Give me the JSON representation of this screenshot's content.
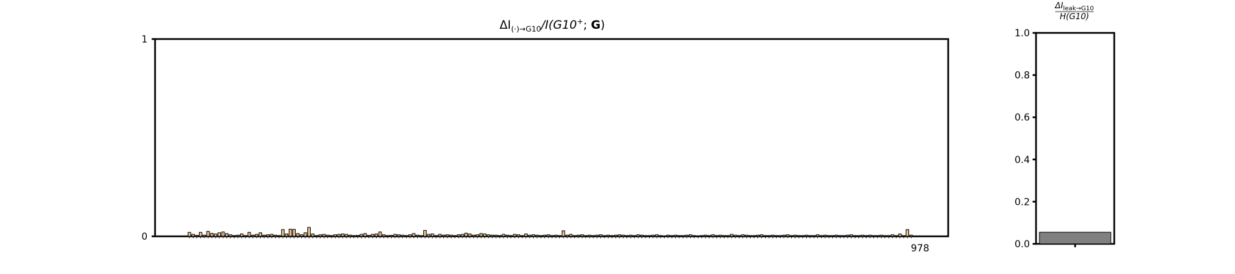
{
  "chart_data": [
    {
      "type": "bar",
      "title": "ΔI(·)→G10/I(G10+; G)",
      "title_parts": {
        "delta": "ΔI",
        "subscript": "(·)→G10",
        "mid": "/I(G10",
        "superscript": "+",
        "tail": "; ",
        "bold": "G",
        "close": ")"
      },
      "xlabel": "",
      "ylabel": "",
      "ylim": [
        0,
        1
      ],
      "yticks": [
        "0",
        "1"
      ],
      "bar_fill": "#f5c78f",
      "bar_edge": "#000000",
      "values": [
        0.02,
        0.01,
        0.005,
        0.02,
        0.006,
        0.025,
        0.015,
        0.012,
        0.018,
        0.022,
        0.014,
        0.008,
        0.004,
        0.006,
        0.012,
        0.004,
        0.02,
        0.006,
        0.01,
        0.018,
        0.006,
        0.008,
        0.01,
        0.006,
        0.004,
        0.034,
        0.012,
        0.036,
        0.035,
        0.014,
        0.008,
        0.018,
        0.045,
        0.012,
        0.004,
        0.008,
        0.01,
        0.006,
        0.004,
        0.008,
        0.01,
        0.012,
        0.01,
        0.006,
        0.004,
        0.005,
        0.01,
        0.014,
        0.005,
        0.01,
        0.012,
        0.022,
        0.008,
        0.004,
        0.005,
        0.01,
        0.008,
        0.006,
        0.004,
        0.008,
        0.014,
        0.006,
        0.004,
        0.03,
        0.01,
        0.012,
        0.004,
        0.01,
        0.006,
        0.008,
        0.006,
        0.004,
        0.008,
        0.01,
        0.016,
        0.012,
        0.006,
        0.008,
        0.014,
        0.012,
        0.008,
        0.006,
        0.006,
        0.004,
        0.01,
        0.006,
        0.004,
        0.01,
        0.008,
        0.004,
        0.012,
        0.006,
        0.008,
        0.006,
        0.004,
        0.006,
        0.008,
        0.004,
        0.006,
        0.004,
        0.028,
        0.006,
        0.01,
        0.004,
        0.006,
        0.008,
        0.004,
        0.006,
        0.004,
        0.006,
        0.008,
        0.004,
        0.006,
        0.004,
        0.006,
        0.008,
        0.006,
        0.004,
        0.006,
        0.004,
        0.008,
        0.006,
        0.004,
        0.004,
        0.006,
        0.008,
        0.004,
        0.002,
        0.006,
        0.004,
        0.006,
        0.004,
        0.004,
        0.006,
        0.008,
        0.004,
        0.002,
        0.004,
        0.006,
        0.004,
        0.008,
        0.004,
        0.006,
        0.004,
        0.004,
        0.01,
        0.006,
        0.004,
        0.008,
        0.006,
        0.004,
        0.004,
        0.006,
        0.008,
        0.004,
        0.004,
        0.006,
        0.004,
        0.004,
        0.006,
        0.008,
        0.004,
        0.006,
        0.004,
        0.004,
        0.006,
        0.004,
        0.004,
        0.008,
        0.004,
        0.006,
        0.004,
        0.004,
        0.006,
        0.004,
        0.004,
        0.006,
        0.008,
        0.004,
        0.004,
        0.006,
        0.004,
        0.006,
        0.004,
        0.004,
        0.006,
        0.004,
        0.004,
        0.008,
        0.004,
        0.012,
        0.004,
        0.034,
        0.006
      ],
      "last_tick_labels": [
        "9",
        "7",
        "8"
      ]
    },
    {
      "type": "bar",
      "title": "ΔIleak→G10/H(G10)",
      "title_parts": {
        "numerator": "ΔI",
        "numerator_sub": "leak→G10",
        "denominator": "H(G10)"
      },
      "xlabel": "",
      "ylabel": "",
      "ylim": [
        0,
        1.0
      ],
      "yticks": [
        "0.0",
        "0.2",
        "0.4",
        "0.6",
        "0.8",
        "1.0"
      ],
      "bar_fill": "#808080",
      "bar_edge": "#000000",
      "values": [
        0.055
      ]
    }
  ]
}
